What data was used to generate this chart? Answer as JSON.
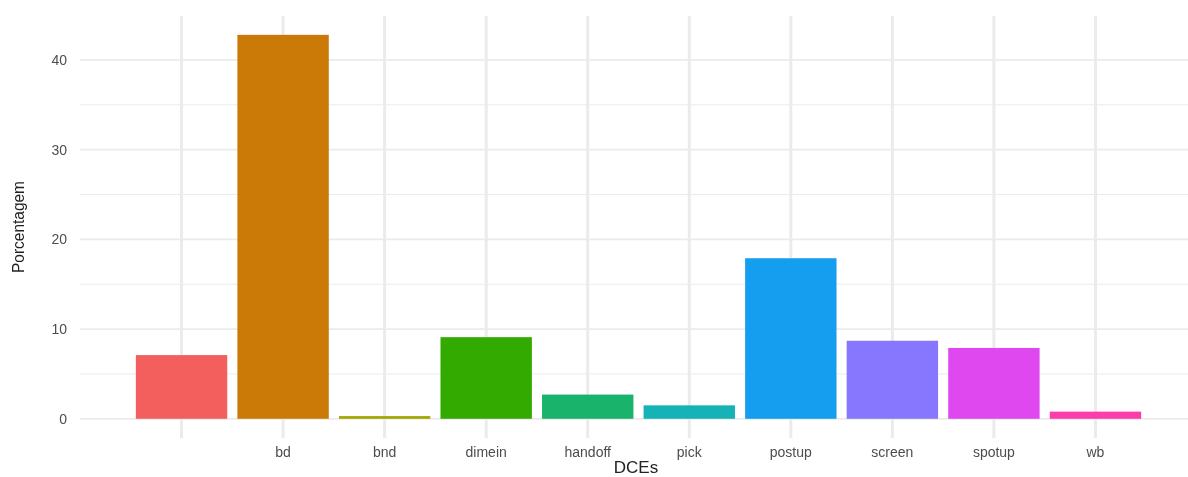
{
  "chart_data": {
    "type": "bar",
    "xlabel": "DCEs",
    "ylabel": "Porcentagem",
    "categories": [
      null,
      "bd",
      "bnd",
      "dimein",
      "handoff",
      "pick",
      "postup",
      "screen",
      "spotup",
      "wb"
    ],
    "values": [
      7.1,
      42.8,
      0.3,
      9.1,
      2.7,
      1.5,
      17.9,
      8.7,
      7.9,
      0.8
    ],
    "colors": [
      "#f25f5c",
      "#cc7a07",
      "#a3a500",
      "#33aa00",
      "#19b36b",
      "#16b3b6",
      "#159ef0",
      "#8677fe",
      "#de48ee",
      "#fb3ea9"
    ],
    "ylim": [
      -2.14,
      44.9
    ],
    "yticks": [
      0,
      {
        "value": 5,
        "label": null
      },
      10,
      {
        "value": 15,
        "label": null
      },
      20,
      {
        "value": 25,
        "label": null
      },
      30,
      {
        "value": 35,
        "label": null
      },
      40
    ],
    "grid": true
  }
}
